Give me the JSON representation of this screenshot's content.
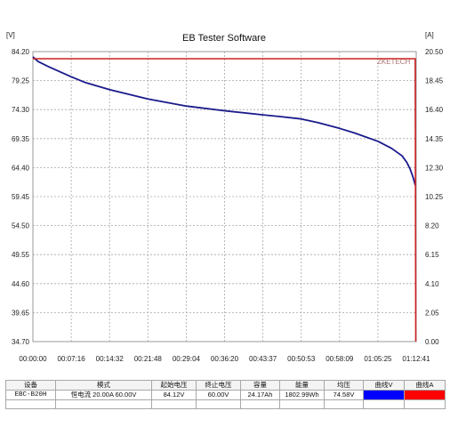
{
  "chart_data": {
    "type": "line",
    "title": "EB Tester Software",
    "y_left_unit": "[V]",
    "y_right_unit": "[A]",
    "watermark": "ZKETECH",
    "xlabel": "",
    "ylabel": "",
    "y_left_ticks": [
      "84.20",
      "79.25",
      "74.30",
      "69.35",
      "64.40",
      "59.45",
      "54.50",
      "49.55",
      "44.60",
      "39.65",
      "34.70"
    ],
    "y_right_ticks": [
      "20.50",
      "18.45",
      "16.40",
      "14.35",
      "12.30",
      "10.25",
      "8.20",
      "6.15",
      "4.10",
      "2.05",
      "0.00"
    ],
    "x_ticks": [
      "00:00:00",
      "00:07:16",
      "00:14:32",
      "00:21:48",
      "00:29:04",
      "00:36:20",
      "00:43:37",
      "00:50:53",
      "00:58:09",
      "01:05:25",
      "01:12:41"
    ],
    "ylim_left": [
      34.7,
      84.2
    ],
    "ylim_right": [
      0.0,
      20.5
    ],
    "xlim_minutes": [
      0,
      72.683
    ],
    "grid": true,
    "series": [
      {
        "axis": "left",
        "color": "#1a1a8c",
        "x_minutes": [
          0,
          1,
          3,
          7.27,
          10,
          14.53,
          21.8,
          29.07,
          36.33,
          43.62,
          47,
          50.88,
          54,
          58.15,
          61,
          65.42,
          68,
          70,
          70.9,
          71.5,
          72,
          72.3,
          72.5
        ],
        "values": [
          83.3,
          82.5,
          81.6,
          79.9,
          78.9,
          77.7,
          76.1,
          74.9,
          74.1,
          73.4,
          73.1,
          72.7,
          72.1,
          71.1,
          70.3,
          68.9,
          67.7,
          66.4,
          65.3,
          64.2,
          63.0,
          62.1,
          61.4
        ]
      },
      {
        "axis": "right",
        "color": "#cc2222",
        "x_minutes": [
          0,
          72.5,
          72.6
        ],
        "values": [
          20.0,
          20.0,
          0.0
        ]
      }
    ]
  },
  "table": {
    "headers": [
      "设备",
      "模式",
      "起始电压",
      "终止电压",
      "容量",
      "能量",
      "均压",
      "曲线V",
      "曲线A"
    ],
    "row": {
      "device": "EBC-B20H",
      "mode": "恒电流 20.00A 60.00V",
      "start_voltage": "84.12V",
      "end_voltage": "60.00V",
      "capacity": "24.17Ah",
      "energy": "1802.99Wh",
      "avg_voltage": "74.58V"
    },
    "curve_v_color": "#0000ff",
    "curve_a_color": "#ff0000"
  }
}
